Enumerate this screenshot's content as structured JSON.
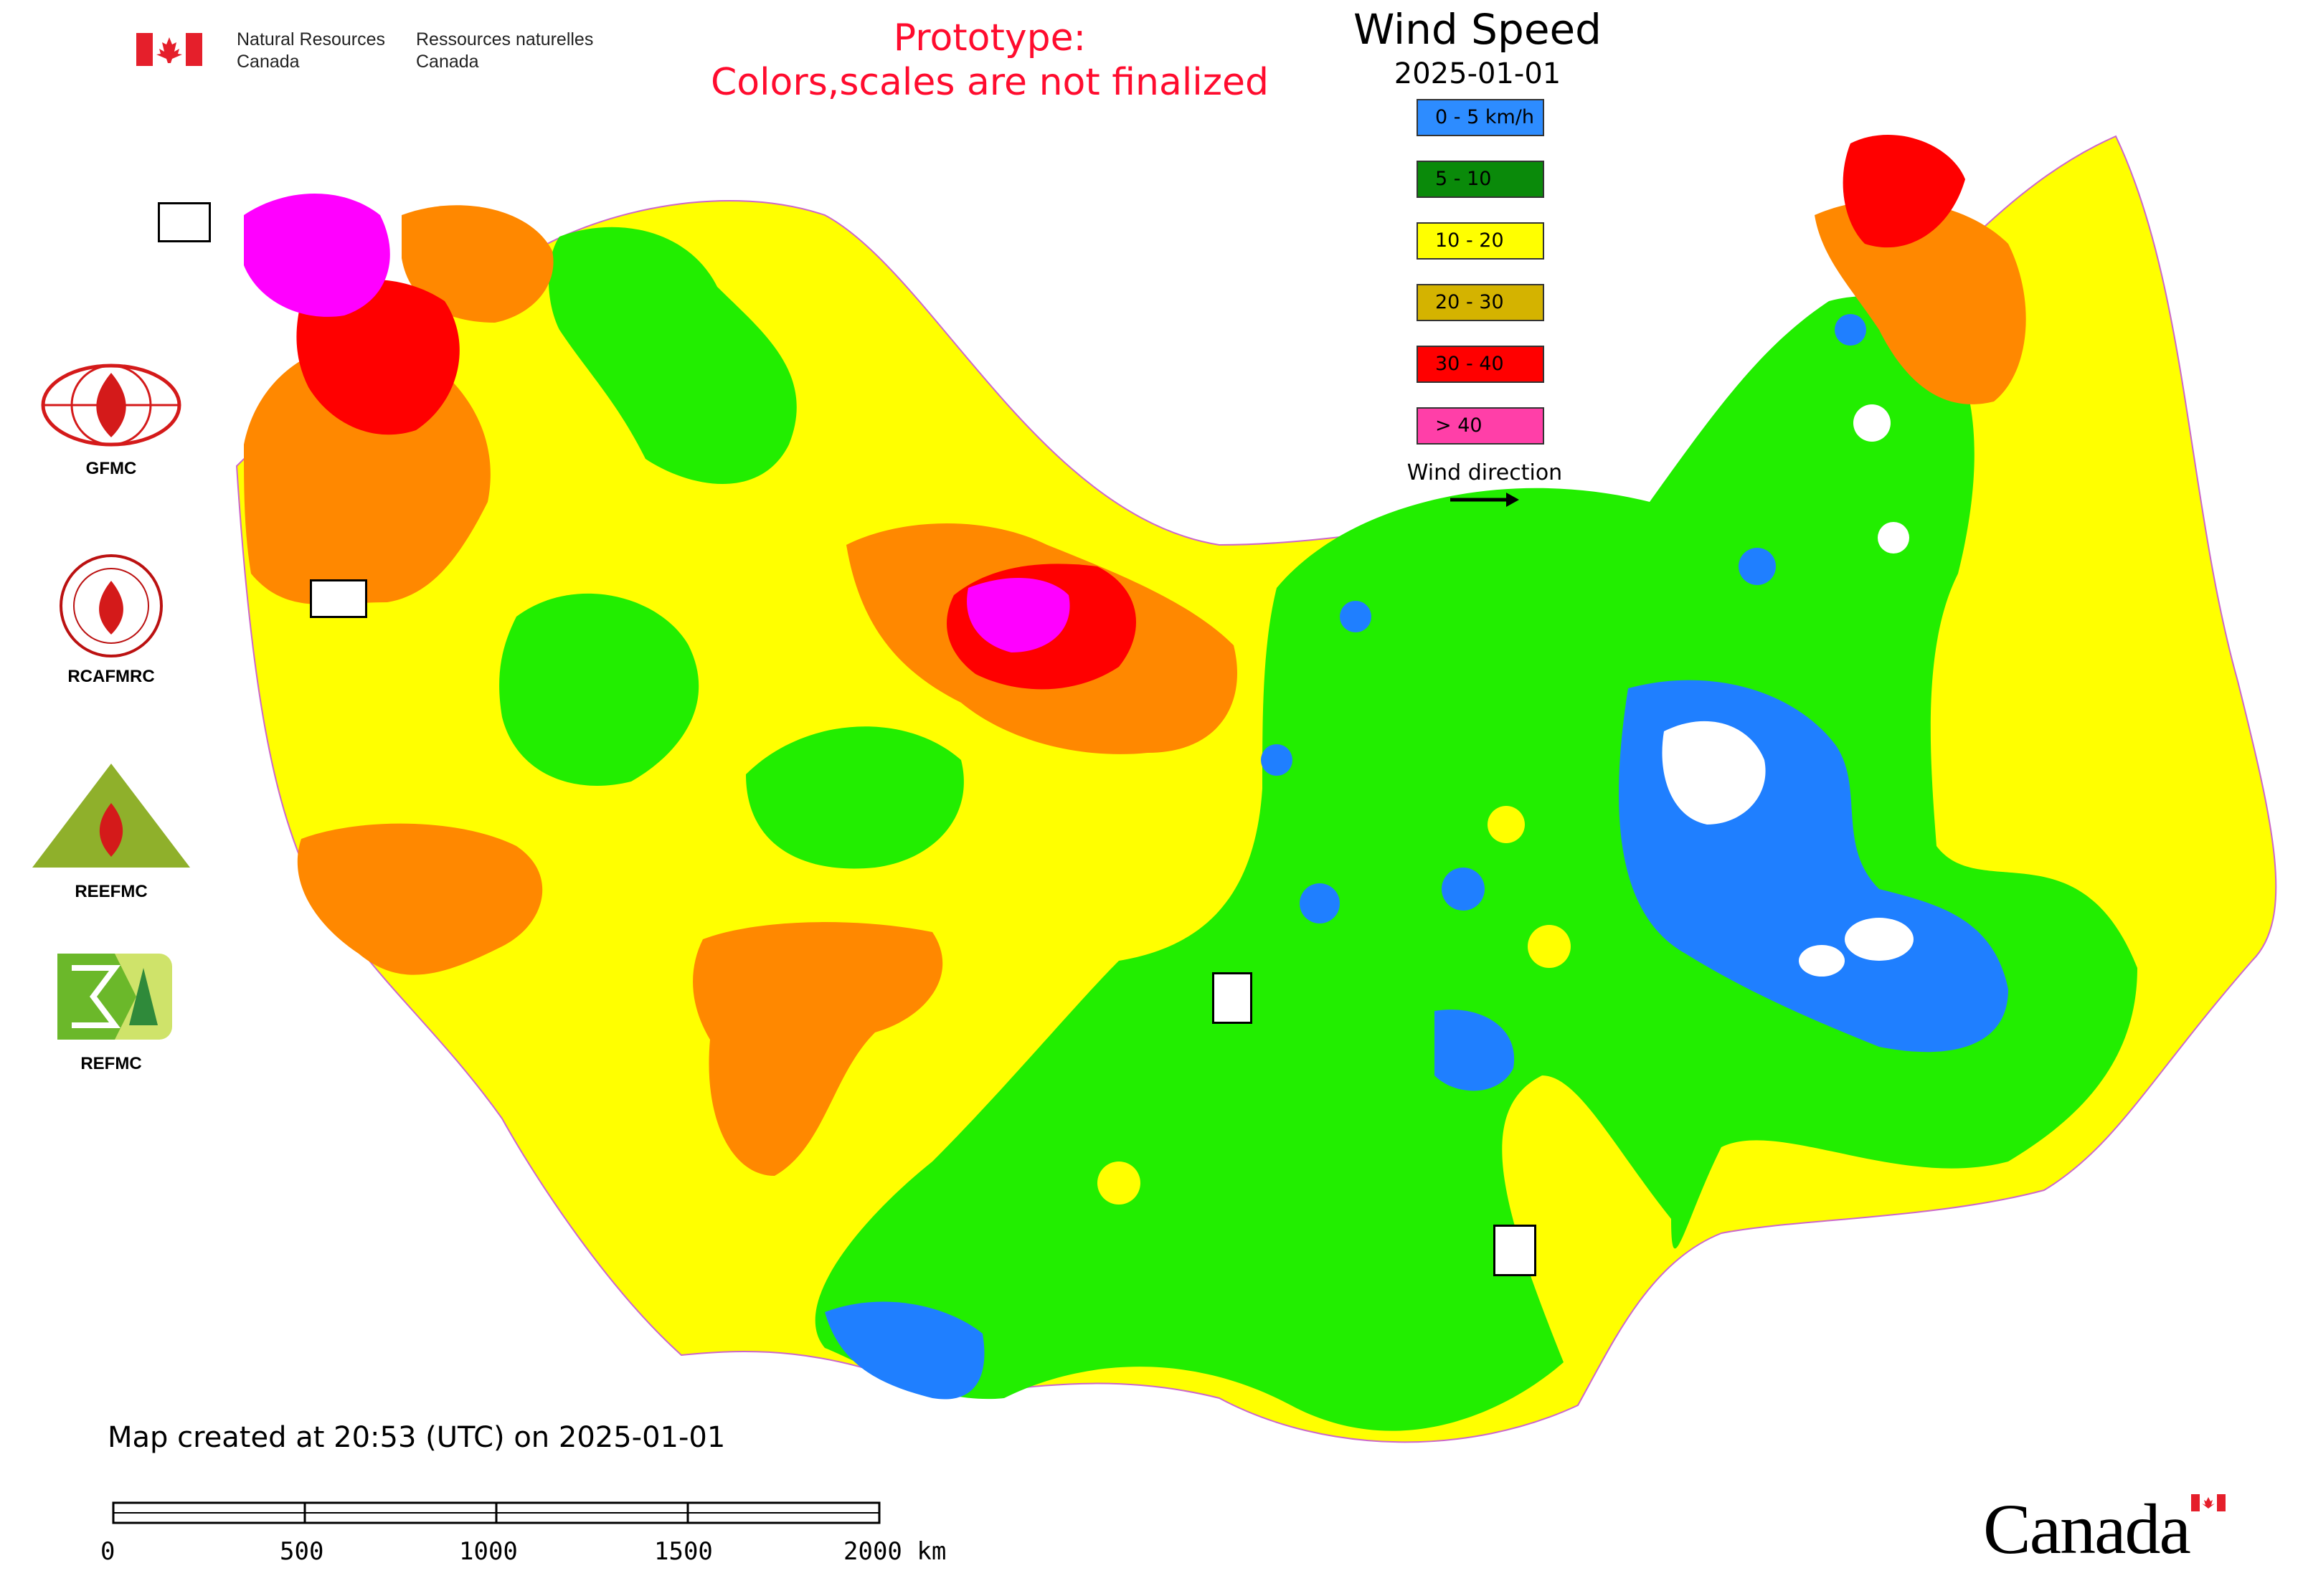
{
  "header": {
    "agency_en_line1": "Natural Resources",
    "agency_en_line2": "Canada",
    "agency_fr_line1": "Ressources naturelles",
    "agency_fr_line2": "Canada",
    "prototype_line1": "Prototype:",
    "prototype_line2": "Colors,scales are not finalized"
  },
  "legend": {
    "title": "Wind Speed",
    "date": "2025-01-01",
    "items": [
      {
        "label": "0 - 5 km/h",
        "color": "#2d8cff"
      },
      {
        "label": "5 - 10",
        "color": "#0a8a0a"
      },
      {
        "label": "10 - 20",
        "color": "#ffff00"
      },
      {
        "label": "20 - 30",
        "color": "#d4b300"
      },
      {
        "label": "30 - 40",
        "color": "#ff0000"
      },
      {
        "label": "> 40",
        "color": "#ff3fa8"
      }
    ],
    "wind_direction_label": "Wind direction"
  },
  "logos": [
    {
      "name": "gfmc",
      "caption": "GFMC"
    },
    {
      "name": "rcafmrc",
      "caption": "RCAFMRC"
    },
    {
      "name": "reefmc",
      "caption": "REEFMC"
    },
    {
      "name": "refmc",
      "caption": "REFMC"
    }
  ],
  "map_colors": {
    "calm": "#1f7fff",
    "light": "#22ee00",
    "moderate": "#ffff00",
    "fresh": "#ff8800",
    "strong": "#ff0000",
    "gale": "#ff00ff",
    "lakes": "#ffffff"
  },
  "footer": {
    "created_note": "Map created at 20:53 (UTC) on 2025-01-01",
    "scale_ticks": [
      "0",
      "500",
      "1000",
      "1500",
      "2000 km"
    ],
    "canada_wordmark": "Canada"
  }
}
